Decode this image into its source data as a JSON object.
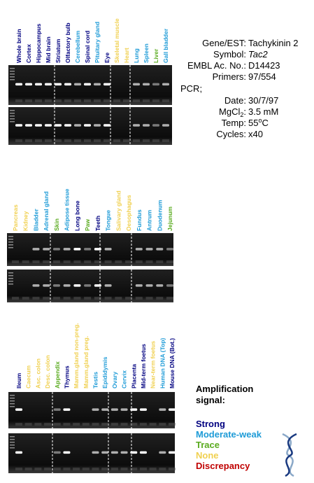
{
  "panels": [
    {
      "lanes": [
        {
          "label": "Whole brain",
          "color": "#000080"
        },
        {
          "label": "Cortex",
          "color": "#000080"
        },
        {
          "label": "Hippocampus",
          "color": "#000080"
        },
        {
          "label": "Mid brain",
          "color": "#000080"
        },
        {
          "label": "Striatum",
          "color": "#000080"
        },
        {
          "label": "Olfactory bulb",
          "color": "#000080"
        },
        {
          "label": "Cerebellum",
          "color": "#1e9bd7"
        },
        {
          "label": "Spinal cord",
          "color": "#000080"
        },
        {
          "label": "Pituitary gland",
          "color": "#1e9bd7"
        },
        {
          "label": "Eye",
          "color": "#000080"
        },
        {
          "label": "Skeletal muscle",
          "color": "#f0d050"
        },
        {
          "label": "Heart",
          "color": "#f0d050"
        },
        {
          "label": "Lung",
          "color": "#1e9bd7"
        },
        {
          "label": "Spleen",
          "color": "#1e9bd7"
        },
        {
          "label": "Liver",
          "color": "#5aab1f"
        },
        {
          "label": "Gall bladder",
          "color": "#1e9bd7"
        }
      ]
    },
    {
      "lanes": [
        {
          "label": "Pancreas",
          "color": "#f0d050"
        },
        {
          "label": "Kidney",
          "color": "#f0d050"
        },
        {
          "label": "Bladder",
          "color": "#1e9bd7"
        },
        {
          "label": "Adrenal gland",
          "color": "#1e9bd7"
        },
        {
          "label": "Skin",
          "color": "#5aab1f"
        },
        {
          "label": "Adipose tissue",
          "color": "#1e9bd7"
        },
        {
          "label": "Long bone",
          "color": "#000080"
        },
        {
          "label": "Paw",
          "color": "#5aab1f"
        },
        {
          "label": "Teeth",
          "color": "#000080"
        },
        {
          "label": "Tongue",
          "color": "#1e9bd7"
        },
        {
          "label": "Salivary gland",
          "color": "#f0d050"
        },
        {
          "label": "Oesophagus",
          "color": "#f0d050"
        },
        {
          "label": "Fundus",
          "color": "#1e9bd7"
        },
        {
          "label": "Antrum",
          "color": "#1e9bd7"
        },
        {
          "label": "Duodenum",
          "color": "#1e9bd7"
        },
        {
          "label": "Jejunum",
          "color": "#5aab1f"
        }
      ]
    },
    {
      "lanes": [
        {
          "label": "Ileum",
          "color": "#000080"
        },
        {
          "label": "Caecum",
          "color": "#f0d050"
        },
        {
          "label": "Asc. colon",
          "color": "#f0d050"
        },
        {
          "label": "Desc. colon",
          "color": "#f0d050"
        },
        {
          "label": "Appendix",
          "color": "#5aab1f"
        },
        {
          "label": "Thymus",
          "color": "#000080"
        },
        {
          "label": "Mamm.gland non-preg.",
          "color": "#f0d050"
        },
        {
          "label": "Mamm.gland preg.",
          "color": "#f0d050"
        },
        {
          "label": "Testis",
          "color": "#1e9bd7"
        },
        {
          "label": "Epididymis",
          "color": "#1e9bd7"
        },
        {
          "label": "Ovary",
          "color": "#1e9bd7"
        },
        {
          "label": "Cervix",
          "color": "#1e9bd7"
        },
        {
          "label": "Placenta",
          "color": "#000080"
        },
        {
          "label": "Mid-term foetus",
          "color": "#000080"
        },
        {
          "label": "Near-term foetus",
          "color": "#f0d050"
        },
        {
          "label": "Human DNA (Top)",
          "color": "#1e9bd7"
        },
        {
          "label": "Mouse DNA (Bot.)",
          "color": "#000080"
        }
      ]
    }
  ],
  "info": {
    "gene": {
      "label": "Gene/EST:",
      "value": "Tachykinin 2"
    },
    "symbol": {
      "label": "Symbol:",
      "value": "Tac2"
    },
    "embl": {
      "label": "EMBL Ac. No.:",
      "value": "D14423"
    },
    "primers": {
      "label": "Primers:",
      "value": "97/554"
    },
    "pcr": "PCR;",
    "date": {
      "label": "Date:",
      "value": "30/7/97"
    },
    "mgcl": {
      "label": "MgCl",
      "label_sub": "2",
      "label_end": ":",
      "value": "3.5 mM"
    },
    "temp": {
      "label": "Temp:",
      "value": "55",
      "value_sup": "o",
      "value_end": "C"
    },
    "cycles": {
      "label": "Cycles:",
      "value": "x40"
    }
  },
  "legend": {
    "title_line1": "Amplification",
    "title_line2": "signal:",
    "items": [
      {
        "name": "Strong",
        "color": "#000080"
      },
      {
        "name": "Moderate-weak",
        "color": "#1e9bd7"
      },
      {
        "name": "Trace",
        "color": "#5aab1f"
      },
      {
        "name": "None",
        "color": "#f0d050"
      },
      {
        "name": "Discrepancy",
        "color": "#c00000"
      }
    ]
  }
}
